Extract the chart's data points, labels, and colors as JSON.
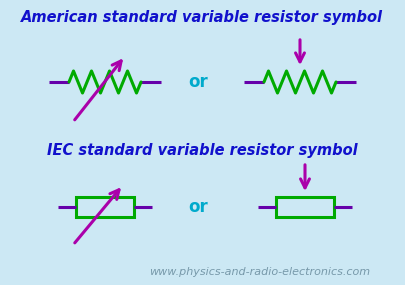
{
  "bg_color": "#cce8f4",
  "title1": "American standard variable resistor symbol",
  "title2": "IEC standard variable resistor symbol",
  "watermark": "www.physics-and-radio-electronics.com",
  "title_color": "#1111cc",
  "line_color": "#6600aa",
  "resistor_color": "#00aa00",
  "or_color": "#00aacc",
  "arrow_color": "#aa00aa",
  "title_fontsize": 10.5,
  "or_fontsize": 12,
  "watermark_fontsize": 8,
  "figsize": [
    4.05,
    2.85
  ],
  "dpi": 100
}
